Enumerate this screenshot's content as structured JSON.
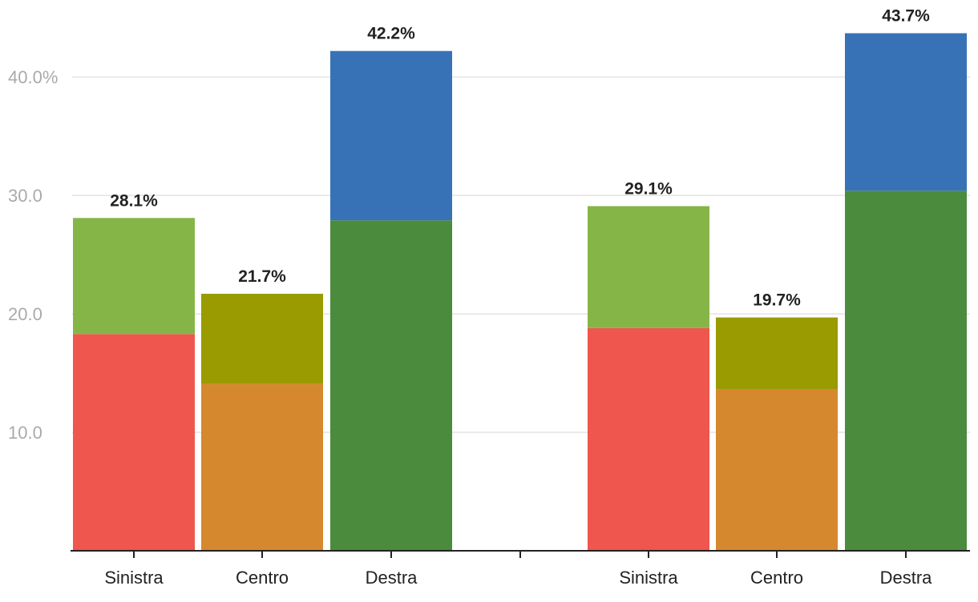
{
  "chart_data": {
    "type": "bar",
    "stacked": true,
    "ylim": [
      0,
      46.1
    ],
    "y_ticks": [
      {
        "value": 10,
        "label": "10.0"
      },
      {
        "value": 20,
        "label": "20.0"
      },
      {
        "value": 30,
        "label": "30.0"
      },
      {
        "value": 40,
        "label": "40.0%"
      }
    ],
    "grid": true,
    "groups": [
      {
        "bars": [
          {
            "category": "Sinistra",
            "total": 28.1,
            "total_label": "28.1%",
            "segments": [
              {
                "value": 18.3,
                "color": "#ef564d"
              },
              {
                "value": 9.8,
                "color": "#86b547"
              }
            ]
          },
          {
            "category": "Centro",
            "total": 21.7,
            "total_label": "21.7%",
            "segments": [
              {
                "value": 14.1,
                "color": "#d6882f"
              },
              {
                "value": 7.6,
                "color": "#999b00"
              }
            ]
          },
          {
            "category": "Destra",
            "total": 42.2,
            "total_label": "42.2%",
            "segments": [
              {
                "value": 27.9,
                "color": "#4b8b3d"
              },
              {
                "value": 14.3,
                "color": "#3772b6"
              }
            ]
          }
        ]
      },
      {
        "bars": [
          {
            "category": "Sinistra",
            "total": 29.1,
            "total_label": "29.1%",
            "segments": [
              {
                "value": 18.8,
                "color": "#ef564d"
              },
              {
                "value": 10.3,
                "color": "#86b547"
              }
            ]
          },
          {
            "category": "Centro",
            "total": 19.7,
            "total_label": "19.7%",
            "segments": [
              {
                "value": 13.6,
                "color": "#d6882f"
              },
              {
                "value": 6.1,
                "color": "#999b00"
              }
            ]
          },
          {
            "category": "Destra",
            "total": 43.7,
            "total_label": "43.7%",
            "segments": [
              {
                "value": 30.4,
                "color": "#4b8b3d"
              },
              {
                "value": 13.3,
                "color": "#3772b6"
              }
            ]
          }
        ]
      }
    ]
  }
}
